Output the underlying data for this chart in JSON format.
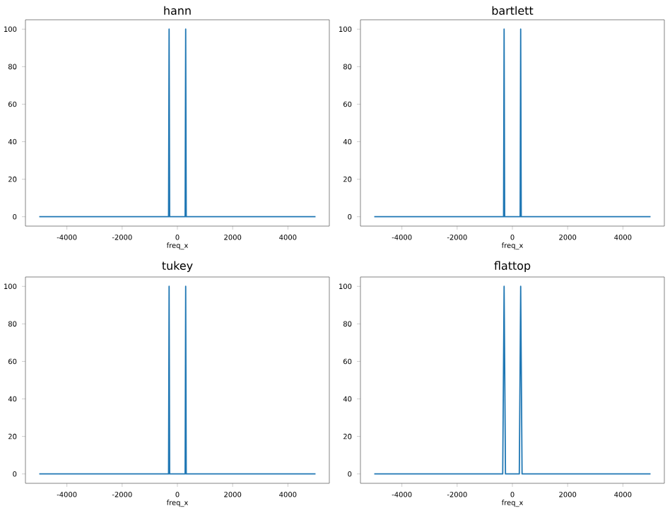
{
  "chart_data": [
    {
      "type": "line",
      "title": "hann",
      "xlabel": "freq_x",
      "xlim": [
        -5500,
        5500
      ],
      "ylim": [
        -5,
        105
      ],
      "xticks": [
        -4000,
        -2000,
        0,
        2000,
        4000
      ],
      "yticks": [
        0,
        20,
        40,
        60,
        80,
        100
      ],
      "series": [
        {
          "color": "#1f77b4",
          "x": [
            -5000,
            -320,
            -300,
            -280,
            280,
            300,
            320,
            5000
          ],
          "values": [
            0,
            0,
            100,
            0,
            0,
            100,
            0,
            0
          ]
        }
      ]
    },
    {
      "type": "line",
      "title": "bartlett",
      "xlabel": "freq_x",
      "xlim": [
        -5500,
        5500
      ],
      "ylim": [
        -5,
        105
      ],
      "xticks": [
        -4000,
        -2000,
        0,
        2000,
        4000
      ],
      "yticks": [
        0,
        20,
        40,
        60,
        80,
        100
      ],
      "series": [
        {
          "color": "#1f77b4",
          "x": [
            -5000,
            -320,
            -300,
            -280,
            280,
            300,
            320,
            5000
          ],
          "values": [
            0,
            0,
            100,
            0,
            0,
            100,
            0,
            0
          ]
        }
      ]
    },
    {
      "type": "line",
      "title": "tukey",
      "xlabel": "freq_x",
      "xlim": [
        -5500,
        5500
      ],
      "ylim": [
        -5,
        105
      ],
      "xticks": [
        -4000,
        -2000,
        0,
        2000,
        4000
      ],
      "yticks": [
        0,
        20,
        40,
        60,
        80,
        100
      ],
      "series": [
        {
          "color": "#1f77b4",
          "x": [
            -5000,
            -320,
            -300,
            -280,
            280,
            300,
            320,
            5000
          ],
          "values": [
            0,
            0,
            100,
            0,
            0,
            100,
            0,
            0
          ]
        }
      ]
    },
    {
      "type": "line",
      "title": "flattop",
      "xlabel": "freq_x",
      "xlim": [
        -5500,
        5500
      ],
      "ylim": [
        -5,
        105
      ],
      "xticks": [
        -4000,
        -2000,
        0,
        2000,
        4000
      ],
      "yticks": [
        0,
        20,
        40,
        60,
        80,
        100
      ],
      "series": [
        {
          "color": "#1f77b4",
          "x": [
            -5000,
            -350,
            -300,
            -250,
            250,
            300,
            350,
            5000
          ],
          "values": [
            0,
            0,
            100,
            0,
            0,
            100,
            0,
            0
          ]
        }
      ]
    }
  ]
}
